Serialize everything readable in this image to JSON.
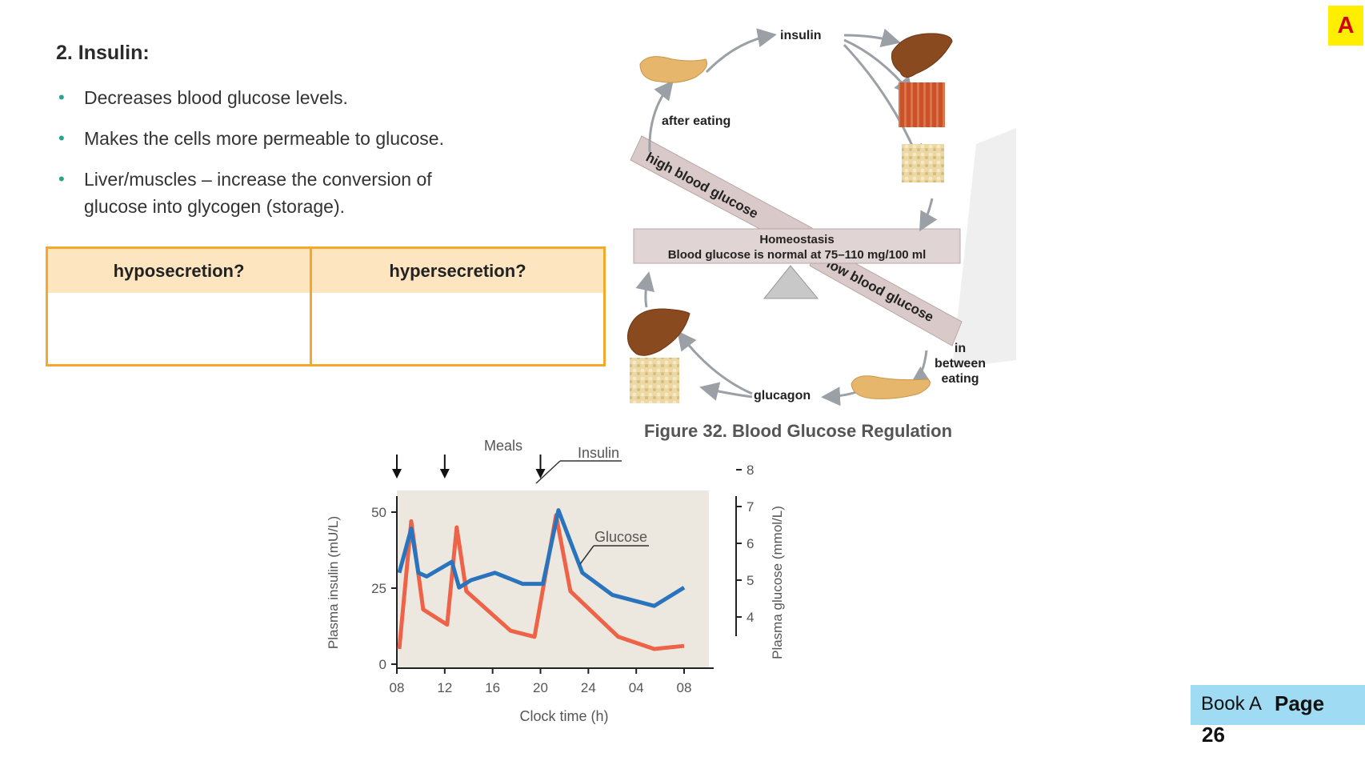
{
  "section": {
    "heading": "2. Insulin:",
    "bullets": [
      "Decreases blood glucose levels.",
      "Makes the cells more permeable to glucose.",
      "Liver/muscles – increase the conversion of glucose into glycogen (storage)."
    ]
  },
  "question_table": {
    "col1": "hyposecretion?",
    "col2": "hypersecretion?"
  },
  "figure": {
    "insulin": "insulin",
    "after_eating": "after eating",
    "high_blood_glucose": "high blood glucose",
    "homeostasis_title": "Homeostasis",
    "homeostasis_text": "Blood glucose is normal at 75–110 mg/100 ml",
    "low_blood_glucose": "low blood glucose",
    "in_between_1": "in",
    "in_between_2": "between",
    "in_between_3": "eating",
    "glucagon": "glucagon",
    "caption": "Figure  32. Blood Glucose Regulation"
  },
  "chart_data": {
    "type": "line",
    "annotation": "Meals",
    "meal_times_h": [
      8,
      12,
      20
    ],
    "xlabel": "Clock time (h)",
    "ylabel_left": "Plasma insulin (mU/L)",
    "ylabel_right": "Plasma glucose (mmol/L)",
    "x_tick_labels": [
      "08",
      "12",
      "16",
      "20",
      "24",
      "04",
      "08"
    ],
    "x_range_h": [
      8,
      32
    ],
    "y_left_ticks": [
      0,
      25,
      50
    ],
    "y_left_range": [
      0,
      50
    ],
    "y_right_ticks": [
      4,
      5,
      6,
      7,
      8
    ],
    "y_right_range": [
      3.0,
      8.0
    ],
    "series": [
      {
        "name": "Insulin",
        "axis": "left",
        "color": "#ee6247",
        "x": [
          8.2,
          9.2,
          10.2,
          12.2,
          13.0,
          13.8,
          17.5,
          19.5,
          21.3,
          22.5,
          26.5,
          29.5,
          32.0
        ],
        "y": [
          5,
          47,
          18,
          13,
          45,
          24,
          11,
          9,
          49,
          24,
          9,
          5,
          6
        ]
      },
      {
        "name": "Glucose",
        "axis": "right",
        "color": "#2a74bd",
        "x": [
          8.2,
          9.2,
          9.8,
          10.5,
          12.6,
          13.2,
          14.2,
          15.2,
          16.2,
          18.5,
          20.2,
          21.5,
          23.5,
          26.0,
          29.5,
          32.0
        ],
        "y": [
          5.2,
          6.4,
          5.2,
          5.1,
          5.5,
          4.8,
          5.0,
          5.1,
          5.2,
          4.9,
          4.9,
          6.9,
          5.2,
          4.6,
          4.3,
          4.8
        ]
      }
    ]
  },
  "badge": "A",
  "page_box": {
    "book": "Book A",
    "page_label": "Page",
    "page_number": "26"
  },
  "colors": {
    "accent_orange": "#f4a92a",
    "header_fill": "#fde5c0",
    "bullet_teal": "#2aa388",
    "badge_yellow": "#ffee00",
    "page_blue": "#9fdcf3"
  }
}
